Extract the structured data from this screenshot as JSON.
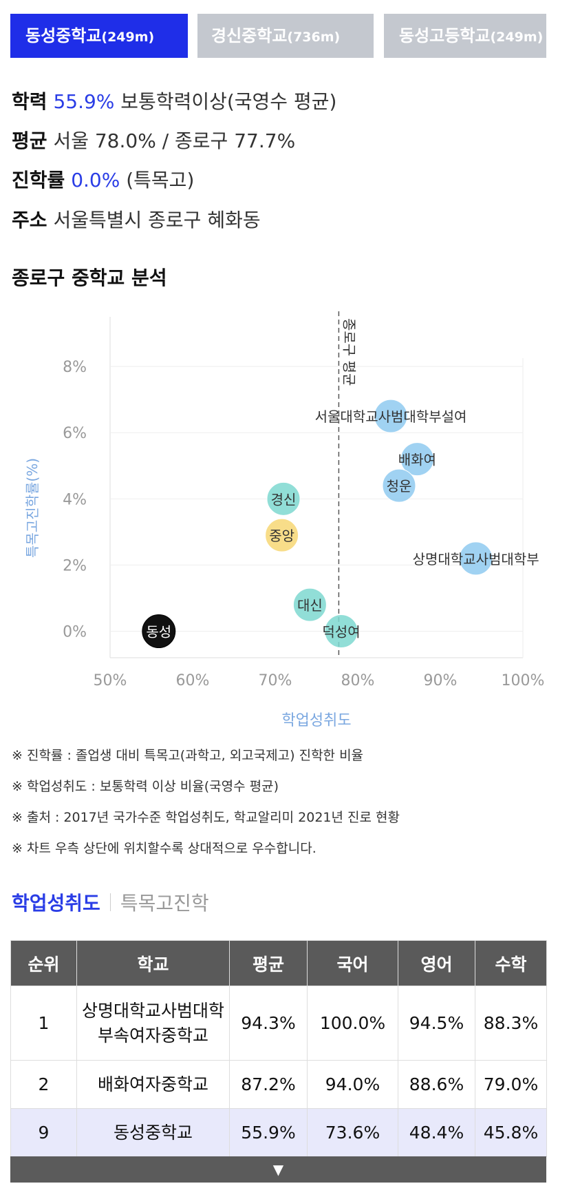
{
  "school_tabs": [
    {
      "name": "동성중학교",
      "distance": "(249m)",
      "active": true
    },
    {
      "name": "경신중학교",
      "distance": "(736m)",
      "active": false
    },
    {
      "name": "동성고등학교",
      "distance": "(249m)",
      "active": false
    }
  ],
  "info": {
    "achievement_label": "학력",
    "achievement_value": "55.9%",
    "achievement_desc": "보통학력이상(국영수 평균)",
    "average_label": "평균",
    "average_value": "서울 78.0% / 종로구 77.7%",
    "advancement_label": "진학률",
    "advancement_value": "0.0%",
    "advancement_desc": "(특목고)",
    "address_label": "주소",
    "address_value": "서울특별시 종로구 혜화동"
  },
  "section_title": "종로구 중학교 분석",
  "chart_data": {
    "type": "scatter",
    "xlabel": "학업성취도",
    "ylabel": "특목고진학률(%)",
    "xlim": [
      50,
      100
    ],
    "ylim": [
      -0.8,
      9.5
    ],
    "xticks": [
      "50%",
      "60%",
      "70%",
      "80%",
      "90%",
      "100%"
    ],
    "yticks": [
      "0%",
      "2%",
      "4%",
      "6%",
      "8%"
    ],
    "avg_line": {
      "x": 77.7,
      "label": "종로구 평균"
    },
    "points": [
      {
        "name": "동성",
        "x": 55.9,
        "y": 0.0,
        "color": "#111111",
        "text_color": "#ffffff"
      },
      {
        "name": "경신",
        "x": 71.0,
        "y": 4.0,
        "color": "#7ed8d0",
        "text_color": "#333333"
      },
      {
        "name": "중앙",
        "x": 70.8,
        "y": 2.9,
        "color": "#f7d774",
        "text_color": "#333333"
      },
      {
        "name": "대신",
        "x": 74.2,
        "y": 0.8,
        "color": "#7ed8d0",
        "text_color": "#333333"
      },
      {
        "name": "덕성여",
        "x": 78.0,
        "y": 0.0,
        "color": "#7ed8d0",
        "text_color": "#333333"
      },
      {
        "name": "서울대학교사범대학부설여",
        "x": 84.0,
        "y": 6.5,
        "color": "#8fcaf0",
        "text_color": "#333333"
      },
      {
        "name": "배화여",
        "x": 87.2,
        "y": 5.2,
        "color": "#8fcaf0",
        "text_color": "#333333"
      },
      {
        "name": "청운",
        "x": 85.0,
        "y": 4.4,
        "color": "#8fcaf0",
        "text_color": "#333333"
      },
      {
        "name": "상명대학교사범대학부",
        "x": 94.3,
        "y": 2.2,
        "color": "#8fcaf0",
        "text_color": "#333333"
      }
    ]
  },
  "notes": [
    "※ 진학률 : 졸업생 대비 특목고(과학고, 외고국제고) 진학한 비율",
    "※ 학업성취도 : 보통학력 이상 비율(국영수 평균)",
    "※ 출처 : 2017년 국가수준 학업성취도, 학교알리미 2021년 진로 현황",
    "※ 차트 우측 상단에 위치할수록 상대적으로 우수합니다."
  ],
  "subtabs": {
    "active": "학업성취도",
    "inactive": "특목고진학"
  },
  "table": {
    "headers": [
      "순위",
      "학교",
      "평균",
      "국어",
      "영어",
      "수학"
    ],
    "rows": [
      {
        "rank": "1",
        "school": "상명대학교사범대학부속여자중학교",
        "avg": "94.3%",
        "kor": "100.0%",
        "eng": "94.5%",
        "math": "88.3%"
      },
      {
        "rank": "2",
        "school": "배화여자중학교",
        "avg": "87.2%",
        "kor": "94.0%",
        "eng": "88.6%",
        "math": "79.0%"
      },
      {
        "rank": "9",
        "school": "동성중학교",
        "avg": "55.9%",
        "kor": "73.6%",
        "eng": "48.4%",
        "math": "45.8%"
      }
    ]
  },
  "expand_icon": "triangle-down-icon",
  "colors": {
    "accent": "#1f2ee8",
    "highlight_text": "#2a3de6",
    "tab_inactive": "#c4c8cf",
    "table_header": "#5a5a5a",
    "row_highlight": "#e8e9fb",
    "axis_label": "#7aa7e0"
  }
}
